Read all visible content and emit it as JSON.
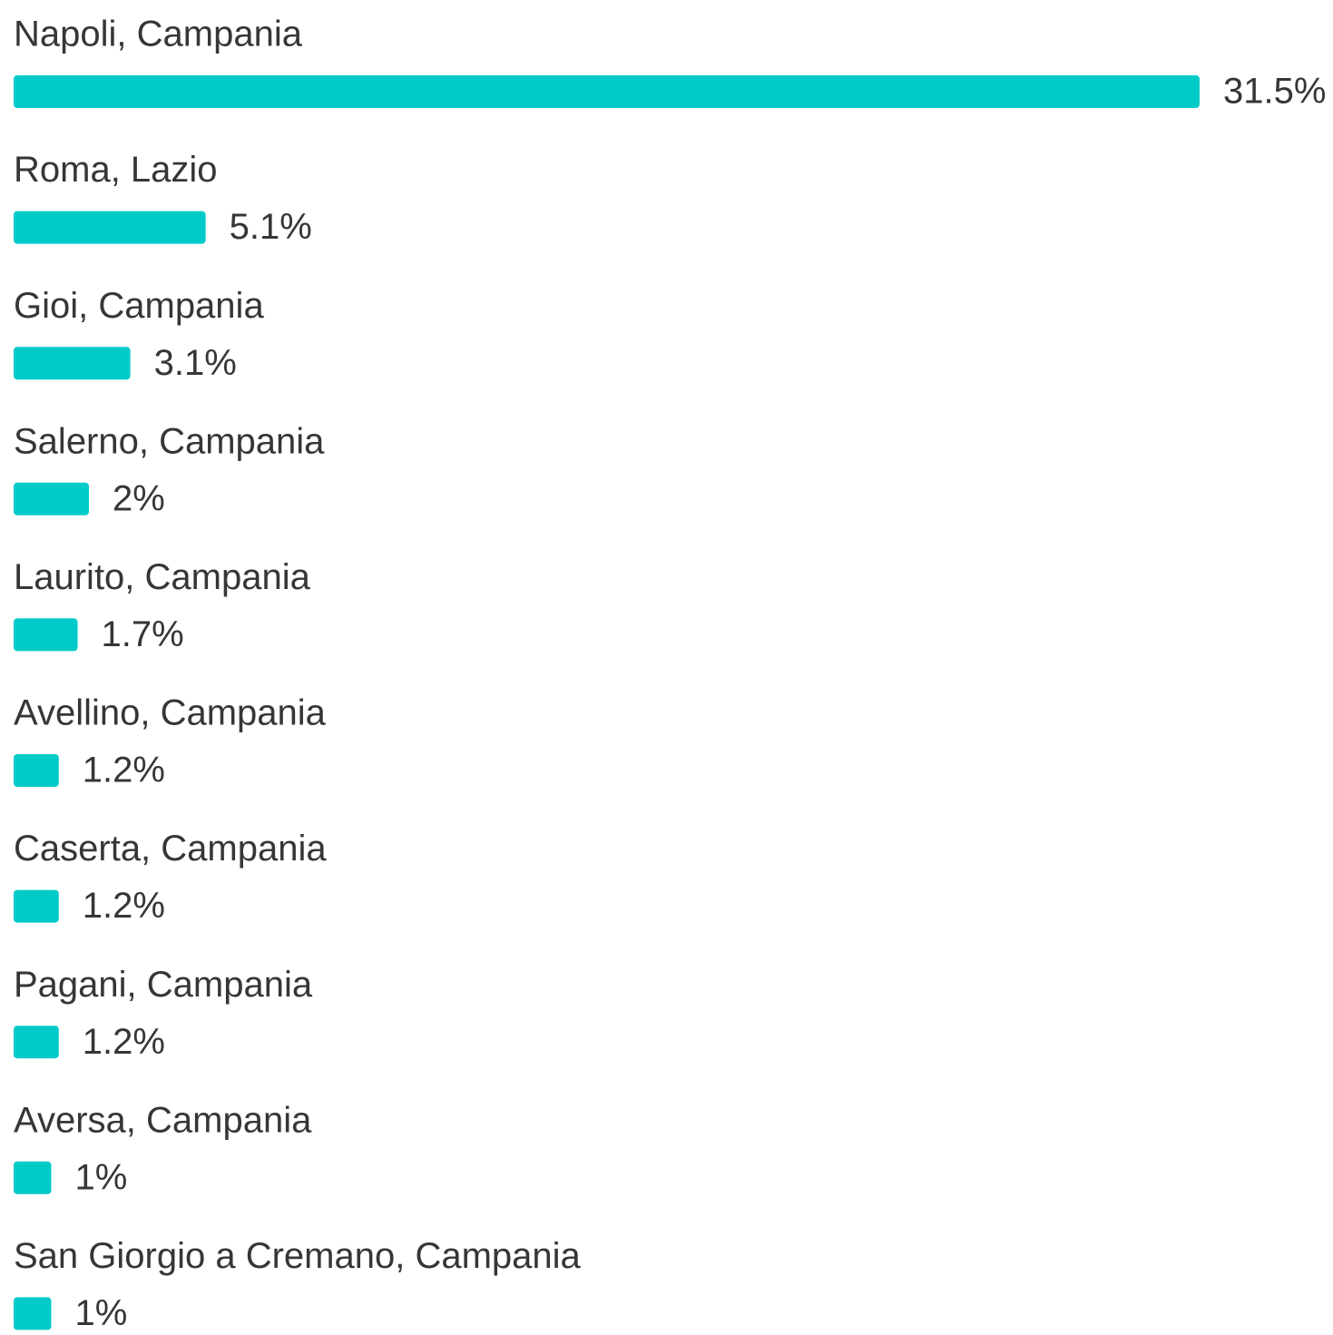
{
  "chart_data": {
    "type": "bar",
    "orientation": "horizontal",
    "categories": [
      "Napoli, Campania",
      "Roma, Lazio",
      "Gioi, Campania",
      "Salerno, Campania",
      "Laurito, Campania",
      "Avellino, Campania",
      "Caserta, Campania",
      "Pagani, Campania",
      "Aversa, Campania",
      "San Giorgio a Cremano, Campania"
    ],
    "values": [
      31.5,
      5.1,
      3.1,
      2,
      1.7,
      1.2,
      1.2,
      1.2,
      1,
      1
    ],
    "value_labels": [
      "31.5%",
      "5.1%",
      "3.1%",
      "2%",
      "1.7%",
      "1.2%",
      "1.2%",
      "1.2%",
      "1%",
      "1%"
    ],
    "color": "#00cbc9"
  }
}
